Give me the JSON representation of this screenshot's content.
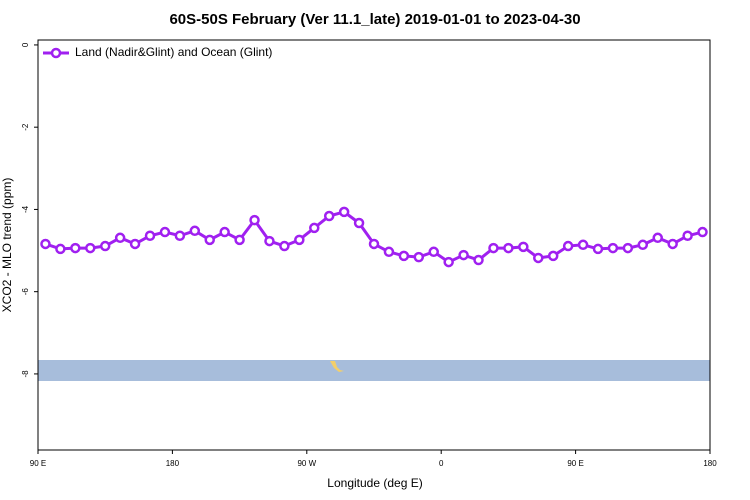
{
  "chart_data": {
    "type": "line",
    "title": "60S-50S February (Ver 11.1_late)   2019-01-01 to 2023-04-30",
    "x_label": "Longitude (deg E)",
    "y_label": "XCO2 - MLO trend (ppm)",
    "x": [
      95,
      105,
      115,
      125,
      135,
      145,
      155,
      165,
      175,
      185,
      195,
      205,
      215,
      225,
      235,
      245,
      255,
      265,
      275,
      285,
      295,
      305,
      315,
      325,
      335,
      345,
      355,
      365,
      375,
      385,
      395,
      405,
      415,
      425,
      435,
      445,
      455,
      465,
      475,
      485,
      495,
      505,
      515,
      525,
      535
    ],
    "series": [
      {
        "name": "Land (Nadir&Glint) and Ocean (Glint)",
        "color": "#a020f0",
        "values": [
          -4.84,
          -4.96,
          -4.94,
          -4.94,
          -4.89,
          -4.69,
          -4.84,
          -4.64,
          -4.55,
          -4.64,
          -4.52,
          -4.74,
          -4.55,
          -4.74,
          -4.26,
          -4.77,
          -4.89,
          -4.74,
          -4.45,
          -4.16,
          -4.06,
          -4.33,
          -4.84,
          -5.03,
          -5.13,
          -5.16,
          -5.03,
          -5.28,
          -5.11,
          -5.23,
          -4.94,
          -4.94,
          -4.91,
          -5.18,
          -5.13,
          -4.89,
          -4.86,
          -4.96,
          -4.94,
          -4.94,
          -4.86,
          -4.69,
          -4.84,
          -4.64,
          -4.55
        ]
      }
    ],
    "xlim": [
      90,
      540
    ],
    "xticks": [
      {
        "value": 90,
        "label": "90 E"
      },
      180,
      {
        "value": 270,
        "label": "90 W"
      },
      {
        "value": 360,
        "label": "0"
      },
      {
        "value": 450,
        "label": "90 E"
      },
      {
        "value": 540,
        "label": "180"
      }
    ],
    "ylim": [
      -9.85,
      0.12
    ],
    "yticks": [
      0,
      -2,
      -4,
      -6,
      -8
    ],
    "legend": "top-left"
  }
}
